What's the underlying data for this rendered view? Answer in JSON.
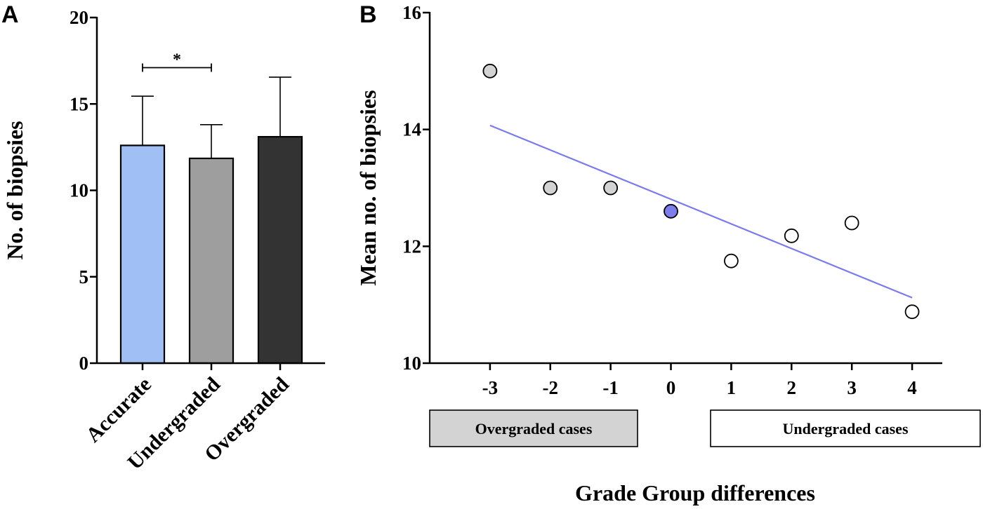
{
  "chart_data": [
    {
      "panel": "A",
      "type": "bar",
      "ylabel": "No. of biopsies",
      "xlabel": "",
      "ylim": [
        0,
        20
      ],
      "yticks": [
        0,
        5,
        10,
        15,
        20
      ],
      "categories": [
        "Accurate",
        "Undergraded",
        "Overgraded"
      ],
      "values": [
        12.6,
        11.85,
        13.1
      ],
      "errors": [
        2.85,
        1.95,
        3.45
      ],
      "colors": [
        "#9fbff5",
        "#9e9e9e",
        "#333333"
      ],
      "significance": [
        {
          "from": 0,
          "to": 1,
          "label": "*",
          "y": 17.1
        }
      ]
    },
    {
      "panel": "B",
      "type": "scatter",
      "ylabel": "Mean no. of biopsies",
      "xlabel": "Grade Group differences",
      "ylim": [
        10,
        16
      ],
      "yticks": [
        10,
        12,
        14,
        16
      ],
      "xlim": [
        -4,
        4.5
      ],
      "xticks": [
        -3,
        -2,
        -1,
        0,
        1,
        2,
        3,
        4
      ],
      "x": [
        -3,
        -2,
        -1,
        0,
        1,
        2,
        3,
        4
      ],
      "y": [
        15.0,
        13.0,
        13.0,
        12.6,
        11.75,
        12.18,
        12.4,
        10.88
      ],
      "point_colors": [
        "#d3d3d3",
        "#d3d3d3",
        "#d3d3d3",
        "#7e7eea",
        "#ffffff",
        "#ffffff",
        "#ffffff",
        "#ffffff"
      ],
      "trendline": {
        "x": [
          -3,
          4
        ],
        "y": [
          14.07,
          11.12
        ],
        "color": "#7b7bea"
      },
      "group_boxes": [
        {
          "label": "Overgraded cases",
          "fill": "#d3d3d3"
        },
        {
          "label": "Undergraded cases",
          "fill": "#ffffff"
        }
      ]
    }
  ]
}
